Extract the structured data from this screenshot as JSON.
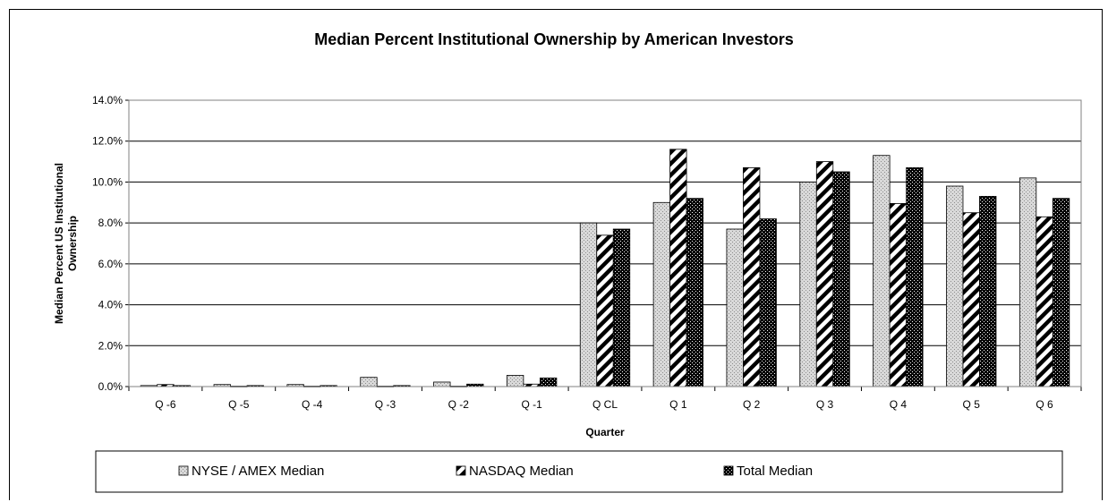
{
  "chart_data": {
    "type": "bar",
    "title": "Median Percent Institutional Ownership by American Investors",
    "xlabel": "Quarter",
    "ylabel_line1": "Median Percent US Institutional",
    "ylabel_line2": "Ownership",
    "ylim": [
      0,
      14
    ],
    "ytick_step": 2,
    "ytick_labels": [
      "0.0%",
      "2.0%",
      "4.0%",
      "6.0%",
      "8.0%",
      "10.0%",
      "12.0%",
      "14.0%"
    ],
    "grid": true,
    "legend_position": "bottom",
    "categories": [
      "Q -6",
      "Q -5",
      "Q -4",
      "Q -3",
      "Q -2",
      "Q -1",
      "Q CL",
      "Q 1",
      "Q 2",
      "Q 3",
      "Q 4",
      "Q 5",
      "Q 6"
    ],
    "series": [
      {
        "name": "NYSE / AMEX Median",
        "pattern": "dotted-gray",
        "values": [
          0.05,
          0.1,
          0.1,
          0.45,
          0.22,
          0.55,
          8.0,
          9.0,
          7.7,
          10.0,
          11.3,
          9.8,
          10.2
        ]
      },
      {
        "name": "NASDAQ Median",
        "pattern": "diagonal-stripes",
        "values": [
          0.1,
          0.02,
          0.02,
          0.02,
          0.02,
          0.12,
          7.4,
          11.6,
          10.7,
          11.0,
          8.95,
          8.5,
          8.3
        ]
      },
      {
        "name": "Total Median",
        "pattern": "dark-dots",
        "values": [
          0.05,
          0.05,
          0.05,
          0.05,
          0.12,
          0.42,
          7.7,
          9.2,
          8.2,
          10.5,
          10.7,
          9.3,
          9.2
        ]
      }
    ]
  }
}
